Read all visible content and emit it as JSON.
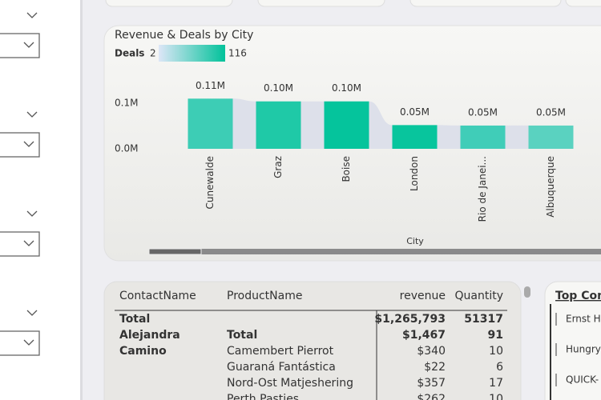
{
  "chart_data": {
    "type": "bar",
    "title": "Revenue & Deals by City",
    "categories": [
      "Cunewalde",
      "Graz",
      "Boise",
      "London",
      "Rio de Janei...",
      "Albuquerque"
    ],
    "values": [
      110000,
      104000,
      104000,
      52000,
      51000,
      51000
    ],
    "value_labels": [
      "0.11M",
      "0.10M",
      "0.10M",
      "0.05M",
      "0.05M",
      "0.05M"
    ],
    "colors": [
      "#3dcdb5",
      "#1fc9a7",
      "#05c49c",
      "#08c59d",
      "#40cdb8",
      "#5ad2c0"
    ],
    "ribbon_color": "#dde0ea",
    "ylim": [
      0,
      150000
    ],
    "yticks": [
      {
        "value": 0,
        "label": "0.0M"
      },
      {
        "value": 100000,
        "label": "0.1M"
      }
    ],
    "xlabel": "City",
    "legend": {
      "title": "Deals",
      "min": 2,
      "max": 116,
      "colors": [
        "#dde6f7",
        "#01c29a"
      ]
    }
  },
  "table": {
    "columns": [
      "ContactName",
      "ProductName",
      "revenue",
      "Quantity"
    ],
    "rows": [
      [
        "Total",
        null,
        "$1,265,793",
        "51317"
      ],
      [
        "Alejandra",
        "Total",
        "$1,467",
        "91"
      ],
      [
        "Camino",
        "Camembert Pierrot",
        "$340",
        "10"
      ],
      [
        null,
        "Guaraná Fantástica",
        "$22",
        "6"
      ],
      [
        null,
        "Nord-Ost Matjeshering",
        "$357",
        "17"
      ],
      [
        null,
        "Perth Pasties",
        "$262",
        "10"
      ]
    ]
  },
  "side_panel": {
    "title": "Top Con",
    "items": [
      "Ernst Ha",
      "Hungry",
      "QUICK-"
    ]
  }
}
